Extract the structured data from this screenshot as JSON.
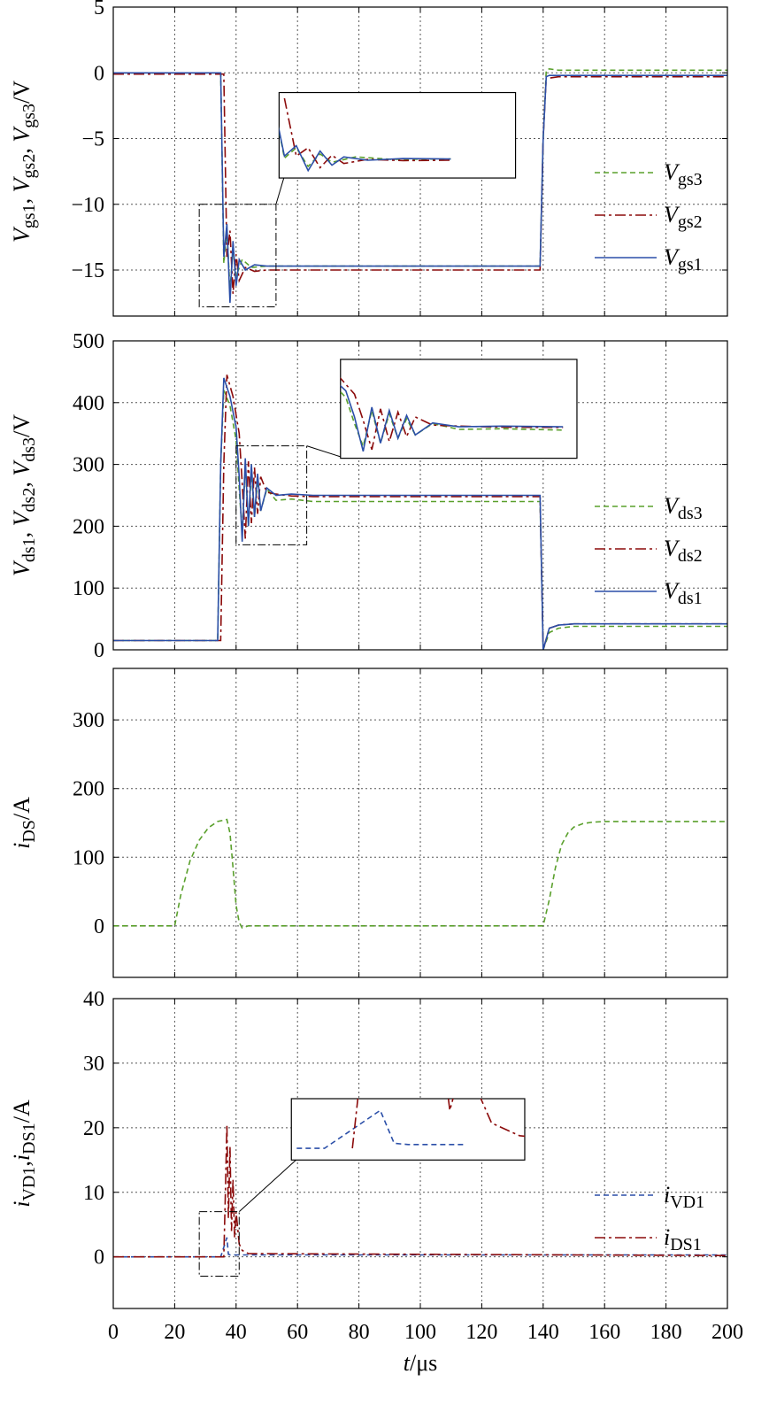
{
  "colors": {
    "green": "#5aa02c",
    "red": "#8b0a0a",
    "blue": "#2b4fa8"
  },
  "x_axis": {
    "label_var": "t",
    "label_unit": "/μs",
    "ticks": [
      "0",
      "20",
      "40",
      "60",
      "80",
      "100",
      "120",
      "140",
      "160",
      "180",
      "200"
    ]
  },
  "chart_data": [
    {
      "type": "line",
      "ylabel": "Vgs1, Vgs2, Vgs3/V",
      "ylabel_parts": [
        [
          "V",
          ""
        ],
        [
          "gs1",
          ", "
        ],
        [
          "V",
          ""
        ],
        [
          "gs2",
          ", "
        ],
        [
          "V",
          ""
        ],
        [
          "gs3",
          "/V"
        ]
      ],
      "xlim": [
        0,
        200
      ],
      "ylim": [
        -18.5,
        5
      ],
      "yticks": [
        5,
        0,
        -5,
        -10,
        -15
      ],
      "ytick_labels": [
        "5",
        "0",
        "−5",
        "−10",
        "−15"
      ],
      "grid": true,
      "legend_position": "right",
      "series": [
        {
          "name": "Vgs3",
          "main": "V",
          "sub": "gs3",
          "color_key": "green",
          "dash": "dashed",
          "x": [
            0,
            35,
            36,
            37,
            38,
            39,
            40,
            42,
            45,
            50,
            139,
            140,
            141,
            142,
            145,
            200
          ],
          "y": [
            0,
            0,
            -14.5,
            -12,
            -16.5,
            -13.5,
            -15.5,
            -14.2,
            -14.8,
            -14.7,
            -14.7,
            -5,
            0.2,
            0.3,
            0.2,
            0.2
          ]
        },
        {
          "name": "Vgs2",
          "main": "V",
          "sub": "gs2",
          "color_key": "red",
          "dash": "dashdot",
          "x": [
            0,
            36,
            37,
            38,
            39,
            40,
            41,
            43,
            46,
            50,
            139,
            140,
            141,
            142,
            145,
            200
          ],
          "y": [
            -0.1,
            -0.1,
            -14,
            -12,
            -16.8,
            -13.8,
            -15.8,
            -14.8,
            -15.1,
            -15,
            -15,
            -5,
            -0.3,
            -0.4,
            -0.3,
            -0.3
          ]
        },
        {
          "name": "Vgs1",
          "main": "V",
          "sub": "gs1",
          "color_key": "blue",
          "dash": "solid",
          "x": [
            0,
            35,
            36,
            37,
            38,
            39,
            40,
            41,
            43,
            46,
            50,
            139,
            140,
            141,
            142,
            145,
            200
          ],
          "y": [
            0,
            0,
            -14,
            -11.5,
            -17.5,
            -12.8,
            -16.2,
            -14.2,
            -15,
            -14.6,
            -14.7,
            -14.7,
            -5,
            -0.3,
            -0.2,
            -0.2,
            -0.2
          ]
        }
      ],
      "zoom_box": {
        "x": [
          28,
          53
        ],
        "y": [
          -17.8,
          -10
        ]
      },
      "inset": {
        "window_x": [
          36,
          55
        ],
        "window_y": [
          -18,
          0
        ],
        "box_data": {
          "x": [
            54,
            131
          ],
          "y": [
            -1.5,
            -8
          ]
        }
      }
    },
    {
      "type": "line",
      "ylabel": "Vds1, Vds2, Vds3/V",
      "ylabel_parts": [
        [
          "V",
          ""
        ],
        [
          "ds1",
          ", "
        ],
        [
          "V",
          ""
        ],
        [
          "ds2",
          ", "
        ],
        [
          "V",
          ""
        ],
        [
          "ds3",
          "/V"
        ]
      ],
      "xlim": [
        0,
        200
      ],
      "ylim": [
        0,
        500
      ],
      "yticks": [
        500,
        400,
        300,
        200,
        100,
        0
      ],
      "ytick_labels": [
        "500",
        "400",
        "300",
        "200",
        "100",
        "0"
      ],
      "grid": true,
      "legend_position": "right",
      "series": [
        {
          "name": "Vds3",
          "main": "V",
          "sub": "ds3",
          "color_key": "green",
          "dash": "dashed",
          "x": [
            0,
            34,
            35,
            36,
            38,
            40,
            41,
            42,
            43,
            44,
            45,
            46,
            47,
            48,
            50,
            53,
            58,
            65,
            139,
            139.5,
            140,
            142,
            145,
            150,
            200
          ],
          "y": [
            15,
            15,
            300,
            420,
            395,
            340,
            260,
            190,
            300,
            200,
            290,
            215,
            275,
            225,
            260,
            242,
            244,
            240,
            240,
            120,
            0,
            28,
            35,
            38,
            38
          ]
        },
        {
          "name": "Vds2",
          "main": "V",
          "sub": "ds2",
          "color_key": "red",
          "dash": "dashdot",
          "x": [
            0,
            35,
            36,
            37,
            39,
            41,
            42,
            43,
            44,
            45,
            46,
            47,
            48,
            50,
            53,
            58,
            65,
            139,
            139.5,
            140,
            142,
            145,
            150,
            200
          ],
          "y": [
            15,
            15,
            300,
            445,
            410,
            350,
            270,
            180,
            305,
            205,
            295,
            220,
            280,
            255,
            252,
            249,
            248,
            248,
            120,
            0,
            35,
            40,
            42,
            42
          ]
        },
        {
          "name": "Vds1",
          "main": "V",
          "sub": "ds1",
          "color_key": "blue",
          "dash": "solid",
          "x": [
            0,
            34,
            35,
            36,
            38,
            40,
            41,
            42,
            43,
            44,
            45,
            46,
            47,
            48,
            50,
            53,
            58,
            65,
            139,
            139.5,
            140,
            142,
            145,
            150,
            200
          ],
          "y": [
            15,
            15,
            300,
            440,
            410,
            360,
            280,
            175,
            310,
            200,
            300,
            215,
            285,
            225,
            262,
            250,
            252,
            250,
            250,
            120,
            0,
            35,
            40,
            42,
            42
          ]
        }
      ],
      "zoom_box": {
        "x": [
          40,
          63
        ],
        "y": [
          170,
          330
        ]
      },
      "inset": {
        "window_x": [
          40,
          66
        ],
        "window_y": [
          170,
          440
        ],
        "box_data": {
          "x": [
            74,
            151
          ],
          "y": [
            470,
            310
          ]
        }
      }
    },
    {
      "type": "line",
      "ylabel": "iDS/A",
      "ylabel_parts": [
        [
          "i",
          ""
        ],
        [
          "DS",
          "/A"
        ]
      ],
      "xlim": [
        0,
        200
      ],
      "ylim": [
        -75,
        375
      ],
      "yticks": [
        300,
        200,
        100,
        0
      ],
      "ytick_labels": [
        "300",
        "200",
        "100",
        "0"
      ],
      "grid": true,
      "legend_position": "none",
      "series": [
        {
          "name": "",
          "color_key": "green",
          "dash": "dashed",
          "x": [
            0,
            20,
            22,
            25,
            28,
            31,
            34,
            37,
            38,
            39,
            40,
            41,
            42,
            44,
            140,
            142,
            144,
            146,
            148,
            150,
            153,
            156,
            160,
            200
          ],
          "y": [
            0,
            0,
            45,
            95,
            125,
            143,
            152,
            155,
            135,
            85,
            30,
            5,
            -3,
            0,
            0,
            38,
            85,
            118,
            135,
            144,
            149,
            151,
            152,
            152
          ]
        }
      ]
    },
    {
      "type": "line",
      "ylabel": "iVD1,iDS1/A",
      "ylabel_parts": [
        [
          "i",
          ""
        ],
        [
          "VD1",
          ","
        ],
        [
          "i",
          ""
        ],
        [
          "DS1",
          "/A"
        ]
      ],
      "xlim": [
        0,
        200
      ],
      "ylim": [
        -8,
        40
      ],
      "yticks": [
        40,
        30,
        20,
        10,
        0
      ],
      "ytick_labels": [
        "40",
        "30",
        "20",
        "10",
        "0"
      ],
      "grid": true,
      "legend_position": "right",
      "series": [
        {
          "name": "iVD1",
          "main": "i",
          "sub": "VD1",
          "color_key": "blue",
          "dash": "dashed",
          "x": [
            0,
            34,
            35,
            36,
            37,
            37.5,
            38,
            40,
            200
          ],
          "y": [
            0,
            0,
            0,
            1.5,
            3,
            0.4,
            0.3,
            0.3,
            0.3
          ]
        },
        {
          "name": "iDS1",
          "main": "i",
          "sub": "DS1",
          "color_key": "red",
          "dash": "dashdot",
          "x": [
            0,
            36,
            36.5,
            37,
            37.5,
            38,
            38.5,
            39,
            39.5,
            40,
            41,
            42,
            44,
            200
          ],
          "y": [
            0,
            0,
            10,
            20.5,
            6,
            17,
            4,
            12,
            3,
            7,
            2,
            1,
            0.5,
            0.2
          ]
        }
      ],
      "zoom_box": {
        "x": [
          28,
          41
        ],
        "y": [
          -3,
          7
        ]
      },
      "inset": {
        "window_x": [
          34,
          42
        ],
        "window_y": [
          -0.5,
          3.5
        ],
        "box_data": {
          "x": [
            58,
            134
          ],
          "y": [
            24.5,
            15
          ]
        }
      }
    }
  ]
}
